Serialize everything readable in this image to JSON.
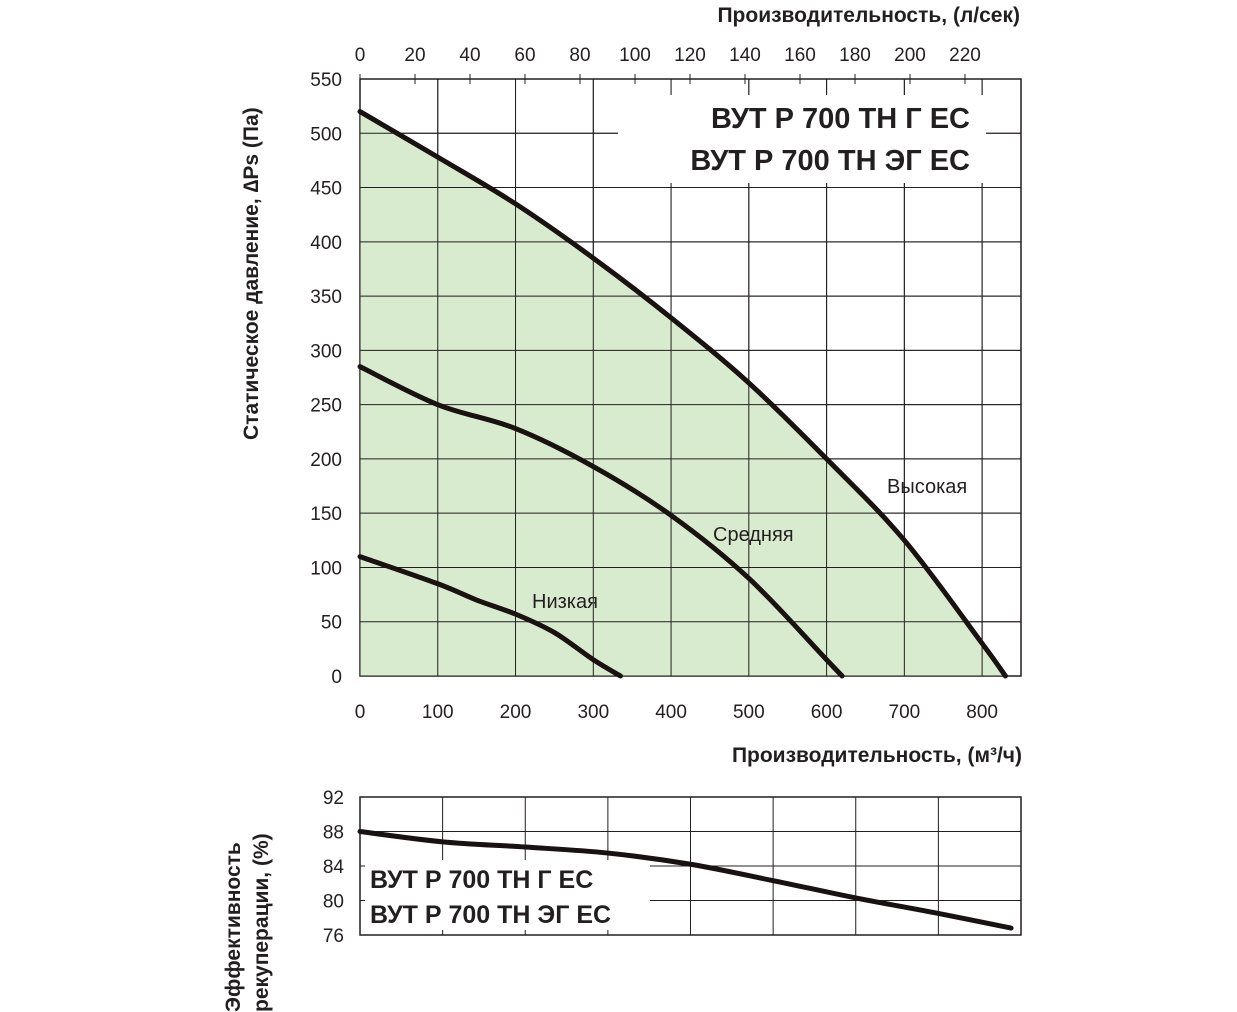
{
  "chart_data": [
    {
      "type": "line",
      "title": "ВУТ Р 700 ТН Г ЕС / ВУТ Р 700 ТН ЭГ ЕС",
      "model_lines": [
        "ВУТ Р 700 ТН Г ЕС",
        "ВУТ Р 700 ТН ЭГ ЕС"
      ],
      "xlabel": "Производительность, (м³/ч)",
      "x2label": "Производительность, (л/сек)",
      "ylabel": "Статическое давление, ∆Ps (Па)",
      "xlim": [
        0,
        850
      ],
      "ylim": [
        0,
        550
      ],
      "xticks": [
        0,
        100,
        200,
        300,
        400,
        500,
        600,
        700,
        800
      ],
      "x2ticks": [
        0,
        20,
        40,
        60,
        80,
        100,
        120,
        140,
        160,
        180,
        200,
        220
      ],
      "yticks": [
        0,
        50,
        100,
        150,
        200,
        250,
        300,
        350,
        400,
        450,
        500,
        550
      ],
      "grid": true,
      "fill_color": "#d9ebcf",
      "series": [
        {
          "name": "Высокая",
          "x": [
            0,
            100,
            200,
            300,
            400,
            500,
            600,
            700,
            800,
            830
          ],
          "y": [
            520,
            478,
            435,
            385,
            330,
            270,
            200,
            125,
            30,
            0
          ]
        },
        {
          "name": "Средняя",
          "x": [
            0,
            100,
            200,
            300,
            400,
            500,
            600,
            620
          ],
          "y": [
            285,
            250,
            228,
            193,
            148,
            90,
            15,
            0
          ]
        },
        {
          "name": "Низкая",
          "x": [
            0,
            100,
            150,
            200,
            250,
            300,
            335
          ],
          "y": [
            110,
            85,
            70,
            57,
            40,
            15,
            0
          ]
        }
      ]
    },
    {
      "type": "line",
      "model_lines": [
        "ВУТ Р 700 ТН Г ЕС",
        "ВУТ Р 700 ТН ЭГ ЕС"
      ],
      "ylabel_lines": [
        "Эффективность",
        "рекуперации, (%)"
      ],
      "xlim": [
        0,
        800
      ],
      "ylim": [
        76,
        92
      ],
      "yticks": [
        92,
        88,
        84,
        80,
        76
      ],
      "grid": true,
      "series": [
        {
          "name": "Эффективность",
          "x": [
            0,
            100,
            200,
            300,
            400,
            500,
            600,
            700,
            788
          ],
          "y": [
            88,
            86.8,
            86.2,
            85.5,
            84.2,
            82.3,
            80.3,
            78.5,
            76.8
          ]
        }
      ]
    }
  ]
}
